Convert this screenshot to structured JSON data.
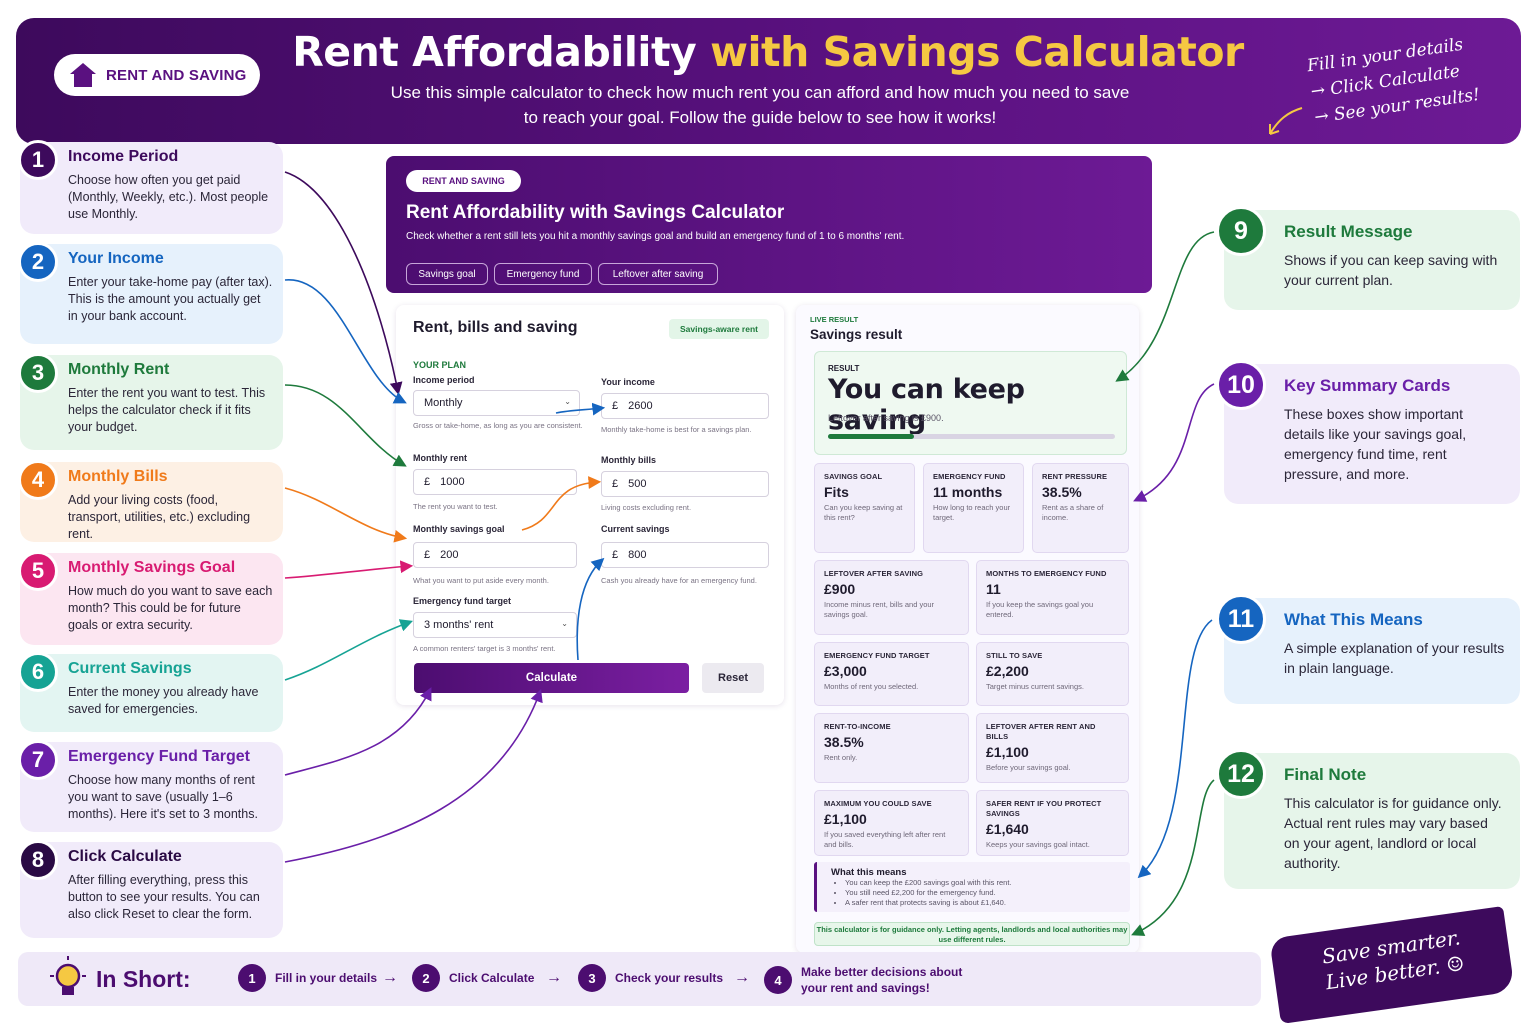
{
  "hero": {
    "tag": "RENT AND SAVING",
    "title_main": "Rent Affordability",
    "title_highlight": "with Savings Calculator",
    "subtitle_1": "Use this simple calculator to check how much rent you can afford and how much you need to save",
    "subtitle_2": "to reach your goal. Follow the guide below to see how it works!",
    "note_1": "Fill in your details",
    "note_2": "→ Click Calculate",
    "note_3": "→ See your results!"
  },
  "steps_left": [
    {
      "num": "1",
      "title": "Income Period",
      "desc": "Choose how often you get paid (Monthly, Weekly, etc.). Most people use Monthly.",
      "color": "#3d0a5c"
    },
    {
      "num": "2",
      "title": "Your Income",
      "desc": "Enter your take-home pay (after tax). This is the amount you actually get in your bank account.",
      "color": "#1565c0"
    },
    {
      "num": "3",
      "title": "Monthly Rent",
      "desc": "Enter the rent you want to test. This helps the calculator check if it fits your budget.",
      "color": "#1e7a3c"
    },
    {
      "num": "4",
      "title": "Monthly Bills",
      "desc": "Add your living costs (food, transport, utilities, etc.) excluding rent.",
      "color": "#f07a1a"
    },
    {
      "num": "5",
      "title": "Monthly Savings Goal",
      "desc": "How much do you want to save each month? This could be for future goals or extra security.",
      "color": "#d81b72"
    },
    {
      "num": "6",
      "title": "Current Savings",
      "desc": "Enter the money you already have saved for emergencies.",
      "color": "#16a394"
    },
    {
      "num": "7",
      "title": "Emergency Fund Target",
      "desc": "Choose how many months of rent you want to save (usually 1–6 months). Here it's set to 3 months.",
      "color": "#6a1fa8"
    },
    {
      "num": "8",
      "title": "Click Calculate",
      "desc": "After filling everything, press this button to see your results. You can also click Reset to clear the form.",
      "color": "#2a0a44"
    }
  ],
  "steps_right": [
    {
      "num": "9",
      "title": "Result Message",
      "desc": "Shows if you can keep saving with your current plan.",
      "color": "#1e7a3c"
    },
    {
      "num": "10",
      "title": "Key Summary Cards",
      "desc": "These boxes show important details like your savings goal, emergency fund time, rent pressure, and more.",
      "color": "#6a1fa8"
    },
    {
      "num": "11",
      "title": "What This Means",
      "desc": "A simple explanation of your results in plain language.",
      "color": "#1565c0"
    },
    {
      "num": "12",
      "title": "Final Note",
      "desc": "This calculator is for guidance only. Actual rent rules may vary based on your agent, landlord or local authority.",
      "color": "#1e7a3c"
    }
  ],
  "calc": {
    "tag": "RENT AND SAVING",
    "title": "Rent Affordability with Savings Calculator",
    "subtitle": "Check whether a rent still lets you hit a monthly savings goal and build an emergency fund of 1 to 6 months' rent.",
    "pills": [
      "Savings goal",
      "Emergency fund",
      "Leftover after saving"
    ]
  },
  "form": {
    "title": "Rent, bills and saving",
    "badge": "Savings-aware rent",
    "section": "YOUR PLAN",
    "currency": "£",
    "income_period_label": "Income period",
    "income_period_value": "Monthly",
    "income_period_hint": "Gross or take-home, as long as you are consistent.",
    "income_label": "Your income",
    "income_value": "2600",
    "income_hint": "Monthly take-home is best for a savings plan.",
    "rent_label": "Monthly rent",
    "rent_value": "1000",
    "rent_hint": "The rent you want to test.",
    "bills_label": "Monthly bills",
    "bills_value": "500",
    "bills_hint": "Living costs excluding rent.",
    "savings_goal_label": "Monthly savings goal",
    "savings_goal_value": "200",
    "savings_goal_hint": "What you want to put aside every month.",
    "current_savings_label": "Current savings",
    "current_savings_value": "800",
    "current_savings_hint": "Cash you already have for an emergency fund.",
    "emergency_label": "Emergency fund target",
    "emergency_value": "3 months' rent",
    "emergency_hint": "A common renters' target is 3 months' rent.",
    "calculate": "Calculate",
    "reset": "Reset"
  },
  "result": {
    "live": "LIVE RESULT",
    "title": "Savings result",
    "label": "RESULT",
    "headline": "You can keep saving",
    "sub": "Leftover after saving is £900.",
    "progress_fraction": 0.3,
    "tiles_top": [
      {
        "label": "SAVINGS GOAL",
        "value": "Fits",
        "desc": "Can you keep saving at this rent?"
      },
      {
        "label": "EMERGENCY FUND",
        "value": "11 months",
        "desc": "How long to reach your target."
      },
      {
        "label": "RENT PRESSURE",
        "value": "38.5%",
        "desc": "Rent as a share of income."
      }
    ],
    "tiles": [
      {
        "label": "LEFTOVER AFTER SAVING",
        "value": "£900",
        "desc": "Income minus rent, bills and your savings goal."
      },
      {
        "label": "MONTHS TO EMERGENCY FUND",
        "value": "11",
        "desc": "If you keep the savings goal you entered."
      },
      {
        "label": "EMERGENCY FUND TARGET",
        "value": "£3,000",
        "desc": "Months of rent you selected."
      },
      {
        "label": "STILL TO SAVE",
        "value": "£2,200",
        "desc": "Target minus current savings."
      },
      {
        "label": "RENT-TO-INCOME",
        "value": "38.5%",
        "desc": "Rent only."
      },
      {
        "label": "LEFTOVER AFTER RENT AND BILLS",
        "value": "£1,100",
        "desc": "Before your savings goal."
      },
      {
        "label": "MAXIMUM YOU COULD SAVE",
        "value": "£1,100",
        "desc": "If you saved everything left after rent and bills."
      },
      {
        "label": "SAFER RENT IF YOU PROTECT SAVINGS",
        "value": "£1,640",
        "desc": "Keeps your savings goal intact."
      }
    ],
    "means_title": "What this means",
    "means_items": [
      "You can keep the £200 savings goal with this rent.",
      "You still need £2,200 for the emergency fund.",
      "A safer rent that protects saving is about £1,640."
    ],
    "guidance": "This calculator is for guidance only. Letting agents, landlords and local authorities may use different rules."
  },
  "footer": {
    "label": "In Short:",
    "steps": [
      {
        "num": "1",
        "text": "Fill in your details"
      },
      {
        "num": "2",
        "text": "Click Calculate"
      },
      {
        "num": "3",
        "text": "Check your results"
      },
      {
        "num": "4",
        "text": "Make better decisions about your rent and savings!"
      }
    ],
    "slogan_1": "Save smarter.",
    "slogan_2": "Live better. ☺"
  }
}
